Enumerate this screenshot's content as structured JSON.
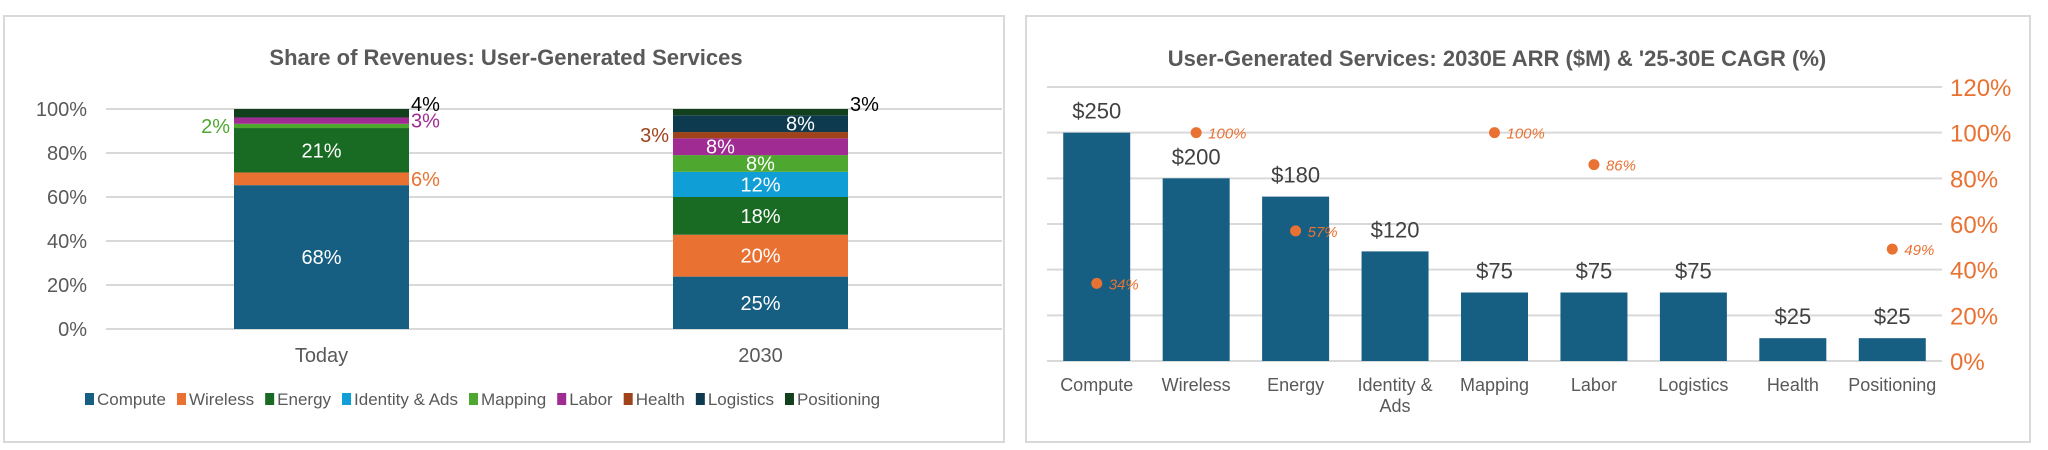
{
  "chart_data": [
    {
      "type": "bar",
      "stacked": true,
      "normalized": true,
      "title": "Share of Revenues: User-Generated Services",
      "categories": [
        "Today",
        "2030"
      ],
      "y_ticks": [
        "0%",
        "20%",
        "40%",
        "60%",
        "80%",
        "100%"
      ],
      "ylim": [
        0,
        100
      ],
      "grid": true,
      "legend_position": "bottom",
      "series": [
        {
          "name": "Compute",
          "color": "#175f82",
          "values": [
            68,
            25
          ],
          "labels": [
            "68%",
            "25%"
          ]
        },
        {
          "name": "Wireless",
          "color": "#e97132",
          "values": [
            6,
            20
          ],
          "labels": [
            "6%",
            "20%"
          ]
        },
        {
          "name": "Energy",
          "color": "#196b24",
          "values": [
            21,
            18
          ],
          "labels": [
            "21%",
            "18%"
          ]
        },
        {
          "name": "Identity & Ads",
          "color": "#0f9ed5",
          "values": [
            0,
            12
          ],
          "labels": [
            null,
            "12%"
          ]
        },
        {
          "name": "Mapping",
          "color": "#4ea72e",
          "values": [
            2,
            8
          ],
          "labels": [
            "2%",
            "8%"
          ]
        },
        {
          "name": "Labor",
          "color": "#a02b93",
          "values": [
            3,
            8
          ],
          "labels": [
            "3%",
            "8%"
          ]
        },
        {
          "name": "Health",
          "color": "#a0421a",
          "values": [
            0,
            3
          ],
          "labels": [
            null,
            "3%"
          ]
        },
        {
          "name": "Logistics",
          "color": "#0e3a4f",
          "values": [
            0,
            8
          ],
          "labels": [
            null,
            "8%"
          ]
        },
        {
          "name": "Positioning",
          "color": "#12401c",
          "values": [
            4,
            3
          ],
          "labels": [
            "4%",
            "3%"
          ]
        }
      ]
    },
    {
      "type": "bar+scatter",
      "title": "User-Generated Services: 2030E ARR ($M) & '25-30E CAGR (%)",
      "categories": [
        "Compute",
        "Wireless",
        "Energy",
        "Identity & Ads",
        "Mapping",
        "Labor",
        "Logistics",
        "Health",
        "Positioning"
      ],
      "bar_series": {
        "color": "#175f82",
        "values": [
          250,
          200,
          180,
          120,
          75,
          75,
          75,
          25,
          25
        ],
        "labels": [
          "$250",
          "$200",
          "$180",
          "$120",
          "$75",
          "$75",
          "$75",
          "$25",
          "$25"
        ]
      },
      "primary_ylim": [
        0,
        300
      ],
      "dot_series": {
        "color": "#e97132",
        "values": [
          34,
          100,
          57,
          null,
          100,
          86,
          null,
          null,
          49
        ],
        "labels": [
          "34%",
          "100%",
          "57%",
          null,
          "100%",
          "86%",
          null,
          null,
          "49%"
        ]
      },
      "secondary_ylim": [
        0,
        120
      ],
      "secondary_y_ticks": [
        "0%",
        "20%",
        "40%",
        "60%",
        "80%",
        "100%",
        "120%"
      ],
      "grid": true
    }
  ]
}
